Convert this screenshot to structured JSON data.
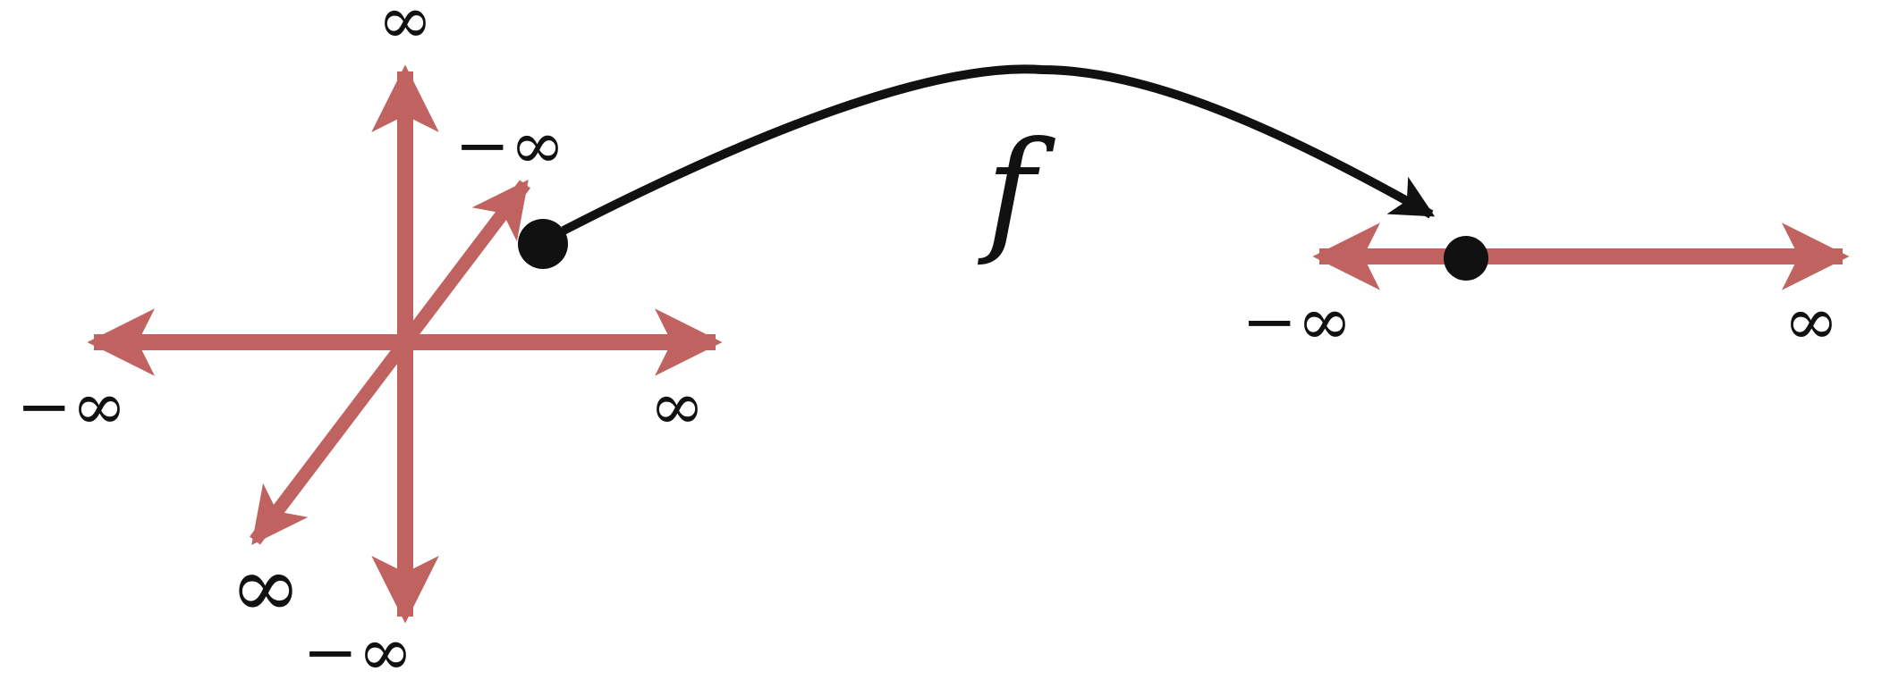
{
  "colors": {
    "axis": "#c0625f",
    "curve": "#111111",
    "point": "#111111",
    "background": "#ffffff"
  },
  "labels": {
    "x_pos": "∞",
    "x_neg": "−∞",
    "y_pos": "∞",
    "y_neg": "−∞",
    "z_pos": "∞",
    "z_neg": "−∞",
    "line_pos": "∞",
    "line_neg": "−∞",
    "function": "f"
  }
}
